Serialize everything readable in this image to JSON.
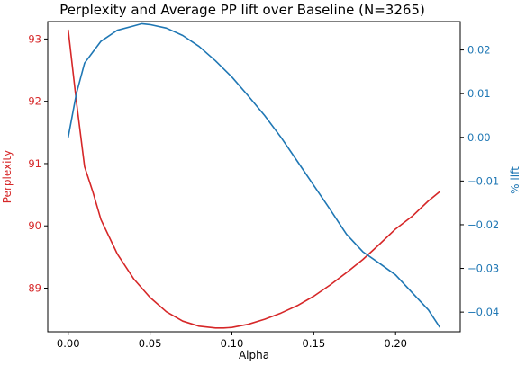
{
  "chart_data": {
    "type": "line",
    "title": "Perplexity and Average PP lift over Baseline (N=3265)",
    "xlabel": "Alpha",
    "ylabel_left": "Perplexity",
    "ylabel_right": "% lift",
    "xlim": [
      -0.0125,
      0.2395
    ],
    "ylim_left": [
      88.3,
      93.28
    ],
    "ylim_right": [
      -0.0445,
      0.0265
    ],
    "x_ticks": [
      0.0,
      0.05,
      0.1,
      0.15,
      0.2
    ],
    "x_tick_labels": [
      "0.00",
      "0.05",
      "0.10",
      "0.15",
      "0.20"
    ],
    "y_left_ticks": [
      89,
      90,
      91,
      92,
      93
    ],
    "y_left_tick_labels": [
      "89",
      "90",
      "91",
      "92",
      "93"
    ],
    "y_right_ticks": [
      -0.04,
      -0.03,
      -0.02,
      -0.01,
      0.0,
      0.01,
      0.02
    ],
    "y_right_tick_labels": [
      "−0.04",
      "−0.03",
      "−0.02",
      "−0.01",
      "0.00",
      "0.01",
      "0.02"
    ],
    "grid": false,
    "colors": {
      "left": "#d62728",
      "right": "#1f77b4"
    },
    "series": [
      {
        "axis": "left",
        "color": "#d62728",
        "x": [
          0.0,
          0.005,
          0.01,
          0.015,
          0.02,
          0.03,
          0.04,
          0.05,
          0.06,
          0.07,
          0.08,
          0.09,
          0.095,
          0.1,
          0.11,
          0.12,
          0.13,
          0.14,
          0.15,
          0.16,
          0.17,
          0.18,
          0.19,
          0.2,
          0.21,
          0.22,
          0.227
        ],
        "values": [
          93.15,
          92.0,
          90.95,
          90.55,
          90.1,
          89.55,
          89.15,
          88.85,
          88.62,
          88.47,
          88.39,
          88.36,
          88.36,
          88.37,
          88.42,
          88.5,
          88.6,
          88.72,
          88.87,
          89.05,
          89.25,
          89.46,
          89.7,
          89.95,
          90.15,
          90.4,
          90.55
        ]
      },
      {
        "axis": "right",
        "color": "#1f77b4",
        "x": [
          0.0,
          0.005,
          0.01,
          0.015,
          0.02,
          0.03,
          0.04,
          0.045,
          0.05,
          0.06,
          0.07,
          0.08,
          0.09,
          0.1,
          0.11,
          0.12,
          0.13,
          0.14,
          0.15,
          0.16,
          0.17,
          0.18,
          0.19,
          0.2,
          0.21,
          0.22,
          0.227
        ],
        "values": [
          0.0,
          0.01,
          0.017,
          0.0195,
          0.022,
          0.0245,
          0.0255,
          0.026,
          0.0258,
          0.025,
          0.0233,
          0.0208,
          0.0175,
          0.0138,
          0.0095,
          0.005,
          0.0,
          -0.0055,
          -0.011,
          -0.0165,
          -0.0222,
          -0.0262,
          -0.0288,
          -0.0315,
          -0.0355,
          -0.0395,
          -0.0435
        ]
      }
    ]
  }
}
